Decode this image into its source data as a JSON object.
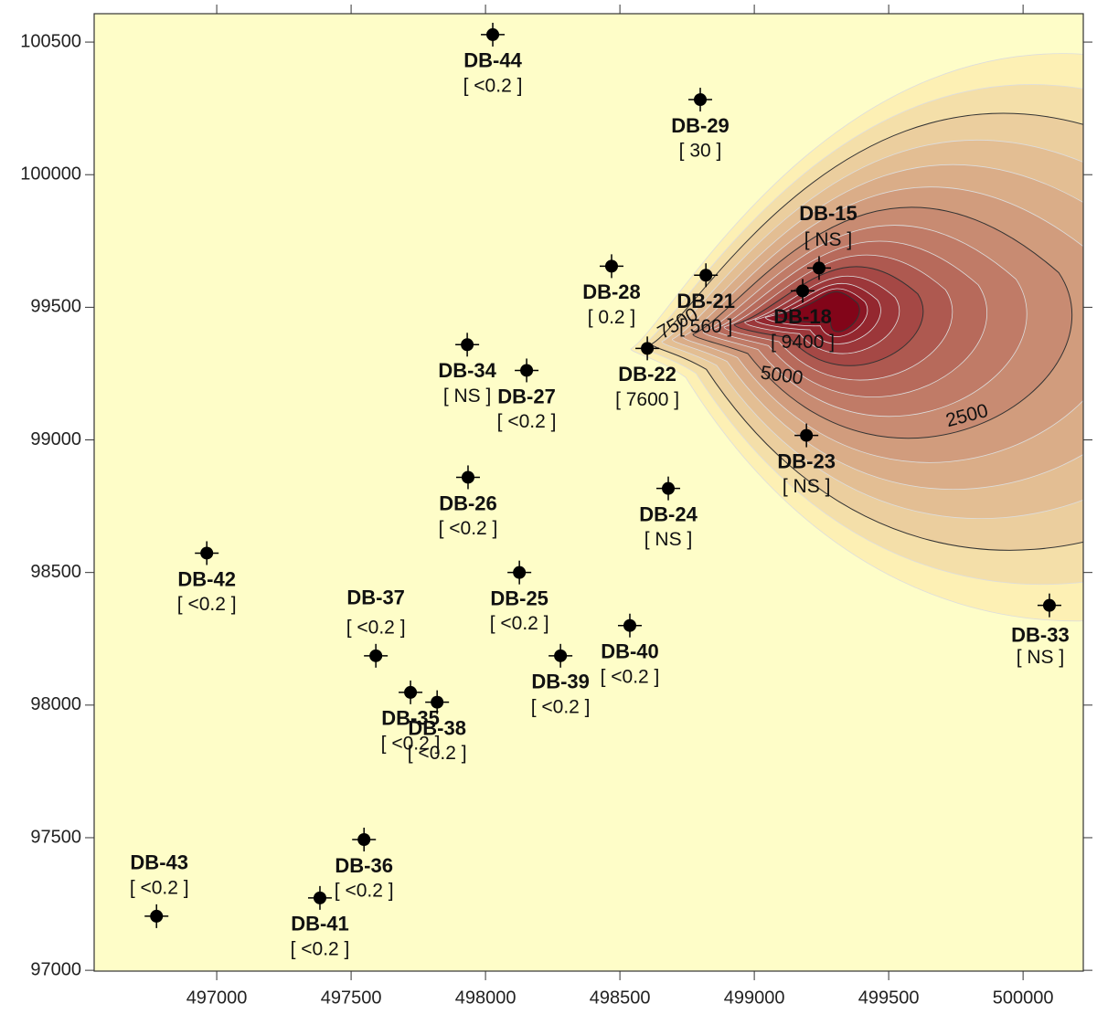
{
  "chart_data": {
    "type": "scatter",
    "xlim": [
      496544,
      500224
    ],
    "ylim": [
      96997,
      100607
    ],
    "xticks": [
      497000,
      497500,
      498000,
      498500,
      499000,
      499500,
      500000
    ],
    "yticks": [
      97000,
      97500,
      98000,
      98500,
      99000,
      99500,
      100000,
      100500
    ],
    "background": "#fefdc8",
    "marker_color": "#000000",
    "contour_labels": [
      "2500",
      "5000",
      "7500"
    ],
    "points": [
      {
        "name": "DB-44",
        "label": "[ <0.2 ]",
        "x": 498027,
        "y": 100528
      },
      {
        "name": "DB-29",
        "label": "[ 30 ]",
        "x": 498799,
        "y": 100283
      },
      {
        "name": "DB-15",
        "label": "[ NS ]",
        "x": 499241,
        "y": 99648
      },
      {
        "name": "DB-18",
        "label": "[ 9400 ]",
        "x": 499180,
        "y": 99562
      },
      {
        "name": "DB-21",
        "label": "[ 560 ]",
        "x": 498820,
        "y": 99621
      },
      {
        "name": "DB-28",
        "label": "[ 0.2 ]",
        "x": 498469,
        "y": 99655
      },
      {
        "name": "DB-22",
        "label": "[ 7600 ]",
        "x": 498602,
        "y": 99345
      },
      {
        "name": "DB-34",
        "label": "[ NS ]",
        "x": 497932,
        "y": 99359
      },
      {
        "name": "DB-27",
        "label": "[ <0.2 ]",
        "x": 498153,
        "y": 99262
      },
      {
        "name": "DB-23",
        "label": "[ NS ]",
        "x": 499194,
        "y": 99017
      },
      {
        "name": "DB-26",
        "label": "[ <0.2 ]",
        "x": 497935,
        "y": 98859
      },
      {
        "name": "DB-24",
        "label": "[ NS ]",
        "x": 498680,
        "y": 98817
      },
      {
        "name": "DB-42",
        "label": "[ <0.2 ]",
        "x": 496963,
        "y": 98573
      },
      {
        "name": "DB-25",
        "label": "[ <0.2 ]",
        "x": 498126,
        "y": 98500
      },
      {
        "name": "DB-37",
        "label": "[ <0.2 ]",
        "x": 497592,
        "y": 98186
      },
      {
        "name": "DB-40",
        "label": "[ <0.2 ]",
        "x": 498537,
        "y": 98300
      },
      {
        "name": "DB-39",
        "label": "[ <0.2 ]",
        "x": 498279,
        "y": 98186
      },
      {
        "name": "DB-35",
        "label": "[ <0.2 ]",
        "x": 497721,
        "y": 98048
      },
      {
        "name": "DB-38",
        "label": "[ <0.2 ]",
        "x": 497820,
        "y": 98011
      },
      {
        "name": "DB-33",
        "label": "[ NS ]",
        "x": 500098,
        "y": 98376
      },
      {
        "name": "DB-36",
        "label": "[ <0.2 ]",
        "x": 497548,
        "y": 97493
      },
      {
        "name": "DB-41",
        "label": "[ <0.2 ]",
        "x": 497384,
        "y": 97273
      },
      {
        "name": "DB-43",
        "label": "[ <0.2 ]",
        "x": 496776,
        "y": 97204
      }
    ]
  }
}
